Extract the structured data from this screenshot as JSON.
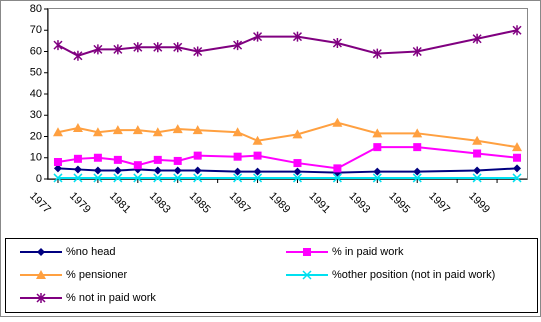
{
  "chart_data": {
    "type": "line",
    "x": [
      1977,
      1978,
      1979,
      1980,
      1981,
      1982,
      1983,
      1984,
      1986,
      1987,
      1989,
      1991,
      1993,
      1995,
      1998,
      2000
    ],
    "xlim": [
      1976.5,
      2000.5
    ],
    "xticks": [
      1977,
      1979,
      1981,
      1983,
      1985,
      1987,
      1989,
      1991,
      1993,
      1995,
      1997,
      1999
    ],
    "ylim": [
      0,
      80
    ],
    "yticks": [
      0,
      10,
      20,
      30,
      40,
      50,
      60,
      70,
      80
    ],
    "series": [
      {
        "name": "%no head",
        "color": "#000080",
        "marker": "diamond",
        "values": [
          5,
          4.5,
          4,
          4,
          4.5,
          4,
          4,
          4,
          3.5,
          3.5,
          3.5,
          3,
          3.5,
          3.5,
          4,
          5
        ]
      },
      {
        "name": "% in paid work",
        "color": "#ff00ff",
        "marker": "square",
        "values": [
          8,
          9.5,
          10,
          9,
          6.5,
          9,
          8.5,
          11,
          10.5,
          11,
          7.5,
          5,
          15,
          15,
          12,
          10
        ]
      },
      {
        "name": "% pensioner",
        "color": "#ffa040",
        "marker": "triangle",
        "values": [
          22,
          24,
          22,
          23,
          23,
          22,
          23.5,
          23,
          22,
          18,
          21,
          26.5,
          21.5,
          21.5,
          18,
          15
        ]
      },
      {
        "name": "%other position (not in paid work)",
        "color": "#00e0f0",
        "marker": "x",
        "values": [
          0.5,
          0.5,
          0.5,
          0.5,
          0.5,
          0.5,
          0.5,
          0.5,
          0.5,
          0.5,
          0.5,
          0.5,
          0.5,
          0.5,
          0.5,
          0.5
        ]
      },
      {
        "name": "% not in paid work",
        "color": "#800080",
        "marker": "star",
        "values": [
          63,
          58,
          61,
          61,
          62,
          62,
          62,
          60,
          63,
          67,
          67,
          64,
          59,
          60,
          66,
          70
        ]
      }
    ]
  }
}
